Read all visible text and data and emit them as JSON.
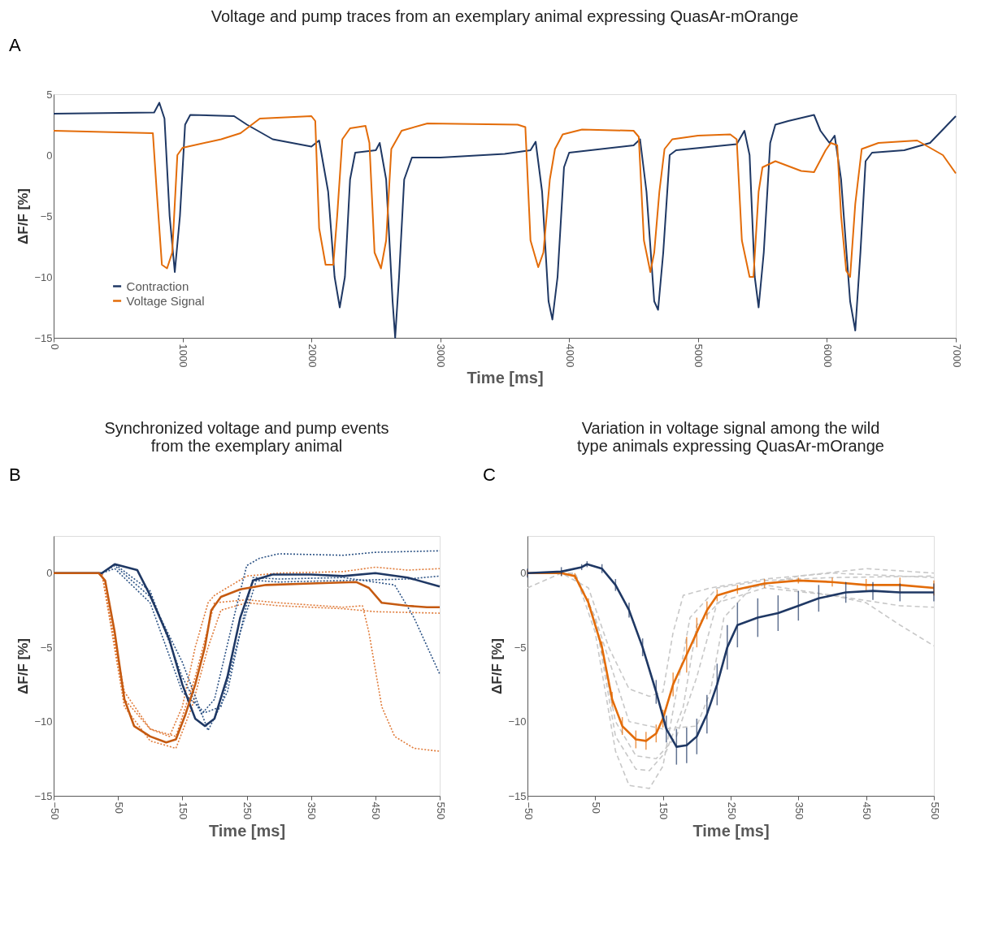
{
  "chart_data": [
    {
      "type": "line",
      "title": "Voltage and pump traces from an exemplary animal  expressing QuasAr-mOrange",
      "xlabel": "Time [ms]",
      "ylabel": "ΔF/F [%]",
      "annotations": [
        "A"
      ],
      "xlim": [
        0,
        7000
      ],
      "ylim": [
        -15,
        5
      ],
      "xticks": [
        0,
        1000,
        2000,
        3000,
        4000,
        5000,
        6000,
        7000
      ],
      "yticks": [
        -15,
        -10,
        -5,
        0,
        5
      ],
      "grid": false,
      "legend": "bottom left",
      "series": [
        {
          "name": "Contraction",
          "color": "#1f3864",
          "line_style": "solid",
          "x": [
            0,
            780,
            820,
            860,
            900,
            940,
            980,
            1020,
            1060,
            1400,
            1500,
            1700,
            2000,
            2060,
            2130,
            2180,
            2220,
            2260,
            2300,
            2340,
            2500,
            2530,
            2580,
            2630,
            2650,
            2680,
            2720,
            2780,
            3000,
            3500,
            3700,
            3740,
            3790,
            3840,
            3870,
            3910,
            3960,
            4000,
            4500,
            4550,
            4600,
            4660,
            4690,
            4730,
            4780,
            4830,
            5300,
            5360,
            5400,
            5440,
            5470,
            5510,
            5560,
            5600,
            5700,
            5900,
            5950,
            6020,
            6060,
            6110,
            6180,
            6220,
            6260,
            6300,
            6350,
            6600,
            6800,
            7000
          ],
          "values": [
            3.4,
            3.5,
            4.3,
            3,
            -5,
            -9.6,
            -5,
            2.5,
            3.3,
            3.2,
            2.5,
            1.3,
            0.7,
            1.2,
            -3,
            -10,
            -12.5,
            -10,
            -2,
            0.2,
            0.4,
            1,
            -2,
            -12,
            -15,
            -10,
            -2,
            -0.2,
            -0.2,
            0.1,
            0.4,
            1.1,
            -3,
            -12,
            -13.5,
            -10,
            -1,
            0.2,
            0.8,
            1.3,
            -3,
            -12,
            -12.7,
            -8,
            0,
            0.4,
            0.9,
            2,
            0,
            -10,
            -12.5,
            -8,
            1,
            2.5,
            2.8,
            3.3,
            2,
            1,
            1.6,
            -2,
            -12,
            -14.4,
            -8,
            -0.5,
            0.2,
            0.4,
            1,
            3.2
          ]
        },
        {
          "name": "Voltage Signal",
          "color": "#e36c09",
          "line_style": "solid",
          "x": [
            0,
            770,
            800,
            840,
            880,
            920,
            960,
            1000,
            1300,
            1450,
            1600,
            2000,
            2030,
            2060,
            2110,
            2170,
            2200,
            2240,
            2300,
            2420,
            2450,
            2490,
            2540,
            2580,
            2620,
            2700,
            2900,
            3600,
            3660,
            3700,
            3760,
            3800,
            3850,
            3890,
            3950,
            4100,
            4500,
            4540,
            4580,
            4630,
            4660,
            4700,
            4740,
            4800,
            5000,
            5250,
            5300,
            5340,
            5400,
            5430,
            5470,
            5500,
            5600,
            5800,
            5900,
            5990,
            6030,
            6080,
            6110,
            6150,
            6180,
            6220,
            6270,
            6400,
            6700,
            6900,
            7000
          ],
          "values": [
            2,
            1.8,
            -3,
            -9,
            -9.3,
            -8,
            0,
            0.6,
            1.3,
            1.8,
            3,
            3.2,
            2.8,
            -6,
            -9,
            -9,
            -5,
            1.3,
            2.2,
            2.4,
            1,
            -8,
            -9.3,
            -7,
            0.5,
            2,
            2.6,
            2.5,
            2.3,
            -7,
            -9.2,
            -8,
            -2,
            0.5,
            1.7,
            2.1,
            2,
            1.5,
            -7,
            -9.6,
            -8,
            -3,
            0.5,
            1.3,
            1.6,
            1.7,
            1.3,
            -7,
            -10,
            -10,
            -3,
            -1,
            -0.5,
            -1.3,
            -1.4,
            0.4,
            1,
            0.8,
            -5,
            -9.5,
            -10,
            -4,
            0.5,
            1,
            1.2,
            0,
            -1.5
          ]
        }
      ]
    },
    {
      "type": "line",
      "title": "Synchronized voltage and pump events\nfrom the exemplary animal",
      "xlabel": "Time [ms]",
      "ylabel": "ΔF/F [%]",
      "annotations": [
        "B"
      ],
      "xlim": [
        -50,
        550
      ],
      "ylim": [
        -15,
        2.5
      ],
      "xticks": [
        -50,
        50,
        150,
        250,
        350,
        450,
        550
      ],
      "yticks": [
        -15,
        -10,
        -5,
        0
      ],
      "grid": false,
      "series": [
        {
          "color": "#e07b39",
          "line_style": "dotted",
          "x": [
            -50,
            25,
            60,
            100,
            140,
            170,
            200,
            250,
            300,
            400,
            430,
            440,
            460,
            480,
            510,
            550
          ],
          "values": [
            0,
            0,
            -8.5,
            -10.5,
            -11,
            -7,
            -2,
            -1.8,
            -2,
            -2.3,
            -2.2,
            -4,
            -9,
            -11,
            -11.8,
            -12
          ]
        },
        {
          "color": "#e07b39",
          "line_style": "dotted",
          "x": [
            -50,
            25,
            60,
            100,
            140,
            165,
            190,
            210,
            250,
            300,
            400,
            450,
            550
          ],
          "values": [
            0,
            0,
            -9,
            -11.3,
            -11.8,
            -9,
            -5,
            -2.5,
            -2,
            -2.2,
            -2.4,
            -2.6,
            -2.7
          ]
        },
        {
          "color": "#e07b39",
          "line_style": "dotted",
          "x": [
            -50,
            25,
            60,
            100,
            130,
            150,
            170,
            190,
            200,
            250,
            300,
            400,
            450,
            500,
            550
          ],
          "values": [
            0,
            0,
            -8,
            -10.5,
            -11,
            -9,
            -5,
            -2,
            -1.5,
            -0.2,
            0,
            0.1,
            0.4,
            0.2,
            0.3
          ]
        },
        {
          "color": "#2e5486",
          "line_style": "dotted",
          "x": [
            -50,
            25,
            45,
            100,
            150,
            180,
            200,
            230,
            250,
            270,
            300,
            400,
            450,
            550
          ],
          "values": [
            0,
            0,
            0.6,
            -1.2,
            -7,
            -9.5,
            -8.5,
            -3,
            0.5,
            1,
            1.3,
            1.2,
            1.4,
            1.5
          ]
        },
        {
          "color": "#2e5486",
          "line_style": "dotted",
          "x": [
            -50,
            25,
            45,
            100,
            150,
            190,
            220,
            245,
            260,
            300,
            400,
            480,
            510,
            550
          ],
          "values": [
            0,
            0,
            0.5,
            -1.6,
            -6,
            -10.6,
            -8,
            -3,
            -0.3,
            -0.4,
            -0.3,
            -0.8,
            -3,
            -6.8
          ]
        },
        {
          "color": "#2e5486",
          "line_style": "dotted",
          "x": [
            -50,
            25,
            45,
            100,
            150,
            185,
            210,
            240,
            265,
            300,
            400,
            500,
            550
          ],
          "values": [
            0,
            0,
            0.3,
            -2,
            -8,
            -9.4,
            -9,
            -4,
            -0.5,
            -0.6,
            -0.5,
            -0.4,
            -0.2
          ]
        },
        {
          "color": "#1f3864",
          "line_style": "solid",
          "x": [
            -50,
            25,
            45,
            80,
            100,
            130,
            150,
            170,
            185,
            200,
            220,
            240,
            260,
            290,
            350,
            400,
            450,
            500,
            550
          ],
          "values": [
            0,
            0,
            0.6,
            0.2,
            -1.5,
            -4.5,
            -7.5,
            -9.8,
            -10.3,
            -9.8,
            -7,
            -3,
            -0.5,
            -0.1,
            -0.1,
            -0.2,
            0,
            -0.3,
            -0.9
          ]
        },
        {
          "color": "#c55a11",
          "line_style": "solid",
          "x": [
            -50,
            20,
            30,
            45,
            60,
            75,
            100,
            125,
            140,
            155,
            170,
            185,
            195,
            210,
            240,
            280,
            350,
            420,
            440,
            460,
            500,
            530,
            550
          ],
          "values": [
            0,
            0,
            -0.5,
            -4,
            -8.5,
            -10.3,
            -11,
            -11.4,
            -11.2,
            -9.5,
            -7.5,
            -5,
            -2.5,
            -1.6,
            -1.1,
            -0.8,
            -0.7,
            -0.6,
            -1,
            -2,
            -2.2,
            -2.3,
            -2.3
          ]
        }
      ]
    },
    {
      "type": "line",
      "title": "Variation in voltage signal among the wild\ntype animals expressing QuasAr-mOrange",
      "xlabel": "Time [ms]",
      "ylabel": "ΔF/F [%]",
      "annotations": [
        "C"
      ],
      "xlim": [
        -50,
        550
      ],
      "ylim": [
        -15,
        2.5
      ],
      "xticks": [
        -50,
        50,
        150,
        250,
        350,
        450,
        550
      ],
      "yticks": [
        -15,
        -10,
        -5,
        0
      ],
      "grid": false,
      "series": [
        {
          "color": "#c8c8c8",
          "line_style": "dashed",
          "x": [
            -50,
            20,
            50,
            80,
            100,
            130,
            150,
            170,
            190,
            230,
            300,
            400,
            550
          ],
          "values": [
            0,
            0,
            -4,
            -12,
            -14.3,
            -14.5,
            -13,
            -8,
            -3,
            -1,
            -0.5,
            -0.3,
            -0.2
          ]
        },
        {
          "color": "#c8c8c8",
          "line_style": "dashed",
          "x": [
            -50,
            0,
            40,
            70,
            100,
            130,
            150,
            165,
            180,
            220,
            300,
            400,
            550
          ],
          "values": [
            -1,
            0,
            -1,
            -5,
            -7.8,
            -8.3,
            -8,
            -4,
            -1.5,
            -1,
            -0.4,
            0,
            -0.3
          ]
        },
        {
          "color": "#c8c8c8",
          "line_style": "dashed",
          "x": [
            -50,
            20,
            50,
            80,
            110,
            130,
            155,
            180,
            200,
            250,
            300,
            400,
            450,
            500,
            550
          ],
          "values": [
            0,
            0,
            -3,
            -11,
            -13.2,
            -13.3,
            -12,
            -9,
            -3.5,
            -1.2,
            -0.8,
            -1.5,
            -2,
            -3.5,
            -4.9
          ]
        },
        {
          "color": "#c8c8c8",
          "line_style": "dashed",
          "x": [
            -50,
            20,
            50,
            80,
            110,
            140,
            170,
            200,
            230,
            300,
            400,
            500,
            550
          ],
          "values": [
            0,
            0,
            -3,
            -10,
            -12.3,
            -12.5,
            -11,
            -7,
            -2,
            -1,
            -1.5,
            -2.2,
            -2.3
          ]
        },
        {
          "color": "#c8c8c8",
          "line_style": "dashed",
          "x": [
            -50,
            20,
            50,
            100,
            150,
            200,
            220,
            240,
            280,
            350,
            450,
            550
          ],
          "values": [
            0,
            0,
            -3,
            -10,
            -10.5,
            -10.3,
            -8,
            -3,
            -1,
            -0.2,
            0.3,
            0
          ]
        },
        {
          "color": "#e36c09",
          "line_style": "solid",
          "x": [
            -50,
            0,
            20,
            40,
            60,
            75,
            90,
            110,
            125,
            140,
            150,
            165,
            185,
            200,
            215,
            230,
            260,
            300,
            350,
            400,
            450,
            500,
            550
          ],
          "values": [
            0,
            0,
            -0.2,
            -2,
            -5,
            -8.5,
            -10.3,
            -11.2,
            -11.3,
            -10.8,
            -9.8,
            -7.5,
            -5.5,
            -4,
            -2.5,
            -1.5,
            -1.1,
            -0.7,
            -0.5,
            -0.6,
            -0.8,
            -0.8,
            -1
          ],
          "errors": [
            0.2,
            0.2,
            0.2,
            0.3,
            0.4,
            0.5,
            0.6,
            0.6,
            0.6,
            0.6,
            0.6,
            0.8,
            1.2,
            1,
            0.6,
            0.4,
            0.3,
            0.3,
            0.2,
            0.3,
            0.4,
            0.5,
            0.5
          ]
        },
        {
          "color": "#1f3864",
          "line_style": "solid",
          "x": [
            -50,
            0,
            30,
            38,
            60,
            80,
            100,
            120,
            140,
            155,
            170,
            185,
            200,
            215,
            230,
            245,
            260,
            290,
            320,
            350,
            380,
            420,
            460,
            500,
            550
          ],
          "values": [
            0,
            0.1,
            0.4,
            0.6,
            0.3,
            -0.8,
            -2.5,
            -5,
            -8,
            -10.5,
            -11.7,
            -11.6,
            -11,
            -9.5,
            -7.5,
            -5,
            -3.5,
            -3,
            -2.7,
            -2.2,
            -1.7,
            -1.3,
            -1.2,
            -1.3,
            -1.3
          ],
          "errors": [
            0.3,
            0.3,
            0.2,
            0.2,
            0.3,
            0.4,
            0.5,
            0.6,
            0.8,
            0.9,
            1.2,
            1.2,
            1.2,
            1.3,
            1.4,
            1.5,
            1.5,
            1.3,
            1.2,
            1,
            0.9,
            0.7,
            0.6,
            0.6,
            0.6
          ]
        }
      ]
    }
  ]
}
